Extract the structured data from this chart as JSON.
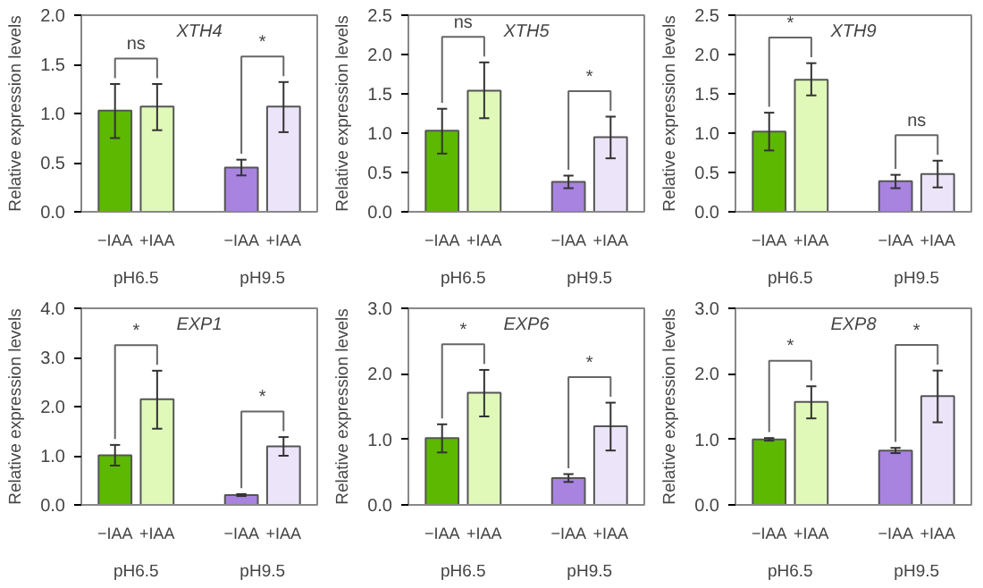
{
  "chart_data": [
    {
      "type": "bar",
      "title": "XTH4",
      "ylabel": "Relative expression levels",
      "categories": [
        "−IAA",
        "+IAA",
        "−IAA",
        "+IAA"
      ],
      "values": [
        1.03,
        1.07,
        0.45,
        1.07
      ],
      "colors": [
        "#5cb800",
        "#e0f9b8",
        "#a883e0",
        "#ece4f8"
      ],
      "errors": [
        [
          0.75,
          1.3
        ],
        [
          0.83,
          1.3
        ],
        [
          0.37,
          0.53
        ],
        [
          0.81,
          1.32
        ]
      ],
      "ylim": [
        0,
        2
      ],
      "yticks": [
        {
          "value": 0,
          "label": "0.0"
        },
        {
          "value": 0.5,
          "label": "0.5"
        },
        {
          "value": 1,
          "label": "1.0"
        },
        {
          "value": 1.5,
          "label": "1.5"
        },
        {
          "value": 2,
          "label": "2.0"
        }
      ],
      "annotations": [
        "ns",
        "*",
        "pH6.5",
        "pH9.5"
      ]
    },
    {
      "type": "bar",
      "title": "XTH5",
      "ylabel": "Relative expression levels",
      "categories": [
        "−IAA",
        "+IAA",
        "−IAA",
        "+IAA"
      ],
      "values": [
        1.03,
        1.54,
        0.38,
        0.95
      ],
      "colors": [
        "#5cb800",
        "#e0f9b8",
        "#a883e0",
        "#ece4f8"
      ],
      "errors": [
        [
          0.74,
          1.31
        ],
        [
          1.19,
          1.9
        ],
        [
          0.3,
          0.46
        ],
        [
          0.68,
          1.21
        ]
      ],
      "ylim": [
        0,
        2.5
      ],
      "yticks": [
        {
          "value": 0,
          "label": "0.0"
        },
        {
          "value": 0.5,
          "label": "0.5"
        },
        {
          "value": 1,
          "label": "1.0"
        },
        {
          "value": 1.5,
          "label": "1.5"
        },
        {
          "value": 2,
          "label": "2.0"
        },
        {
          "value": 2.5,
          "label": "2.5"
        }
      ],
      "annotations": [
        "ns",
        "*",
        "pH6.5",
        "pH9.5"
      ]
    },
    {
      "type": "bar",
      "title": "XTH9",
      "ylabel": "Relative expression levels",
      "categories": [
        "−IAA",
        "+IAA",
        "−IAA",
        "+IAA"
      ],
      "values": [
        1.02,
        1.68,
        0.39,
        0.48
      ],
      "colors": [
        "#5cb800",
        "#e0f9b8",
        "#a883e0",
        "#ece4f8"
      ],
      "errors": [
        [
          0.78,
          1.26
        ],
        [
          1.48,
          1.89
        ],
        [
          0.3,
          0.47
        ],
        [
          0.31,
          0.65
        ]
      ],
      "ylim": [
        0,
        2.5
      ],
      "yticks": [
        {
          "value": 0,
          "label": "0.0"
        },
        {
          "value": 0.5,
          "label": "0.5"
        },
        {
          "value": 1,
          "label": "1.0"
        },
        {
          "value": 1.5,
          "label": "1.5"
        },
        {
          "value": 2,
          "label": "2.0"
        },
        {
          "value": 2.5,
          "label": "2.5"
        }
      ],
      "annotations": [
        "*",
        "ns",
        "pH6.5",
        "pH9.5"
      ]
    },
    {
      "type": "bar",
      "title": "EXP1",
      "ylabel": "Relative expression levels",
      "categories": [
        "−IAA",
        "+IAA",
        "−IAA",
        "+IAA"
      ],
      "values": [
        1.01,
        2.15,
        0.2,
        1.19
      ],
      "colors": [
        "#5cb800",
        "#e0f9b8",
        "#a883e0",
        "#ece4f8"
      ],
      "errors": [
        [
          0.8,
          1.22
        ],
        [
          1.55,
          2.73
        ],
        [
          0.18,
          0.22
        ],
        [
          1.0,
          1.38
        ]
      ],
      "ylim": [
        0,
        4
      ],
      "yticks": [
        {
          "value": 0,
          "label": "0.0"
        },
        {
          "value": 1,
          "label": "1.0"
        },
        {
          "value": 2,
          "label": "2.0"
        },
        {
          "value": 3,
          "label": "3.0"
        },
        {
          "value": 4,
          "label": "4.0"
        }
      ],
      "annotations": [
        "*",
        "*",
        "pH6.5",
        "pH9.5"
      ]
    },
    {
      "type": "bar",
      "title": "EXP6",
      "ylabel": "Relative expression levels",
      "categories": [
        "−IAA",
        "+IAA",
        "−IAA",
        "+IAA"
      ],
      "values": [
        1.02,
        1.71,
        0.41,
        1.2
      ],
      "colors": [
        "#5cb800",
        "#e0f9b8",
        "#a883e0",
        "#ece4f8"
      ],
      "errors": [
        [
          0.8,
          1.23
        ],
        [
          1.35,
          2.06
        ],
        [
          0.35,
          0.47
        ],
        [
          0.83,
          1.56
        ]
      ],
      "ylim": [
        0,
        3
      ],
      "yticks": [
        {
          "value": 0,
          "label": "0.0"
        },
        {
          "value": 1,
          "label": "1.0"
        },
        {
          "value": 2,
          "label": "2.0"
        },
        {
          "value": 3,
          "label": "3.0"
        }
      ],
      "annotations": [
        "*",
        "*",
        "pH6.5",
        "pH9.5"
      ]
    },
    {
      "type": "bar",
      "title": "EXP8",
      "ylabel": "Relative expression levels",
      "categories": [
        "−IAA",
        "+IAA",
        "−IAA",
        "+IAA"
      ],
      "values": [
        1.0,
        1.57,
        0.83,
        1.66
      ],
      "colors": [
        "#5cb800",
        "#e0f9b8",
        "#a883e0",
        "#ece4f8"
      ],
      "errors": [
        [
          0.98,
          1.02
        ],
        [
          1.32,
          1.81
        ],
        [
          0.79,
          0.87
        ],
        [
          1.26,
          2.05
        ]
      ],
      "ylim": [
        0,
        3
      ],
      "yticks": [
        {
          "value": 0,
          "label": "0.0"
        },
        {
          "value": 1,
          "label": "1.0"
        },
        {
          "value": 2,
          "label": "2.0"
        },
        {
          "value": 3,
          "label": "3.0"
        }
      ],
      "annotations": [
        "*",
        "*",
        "pH6.5",
        "pH9.5"
      ]
    }
  ]
}
